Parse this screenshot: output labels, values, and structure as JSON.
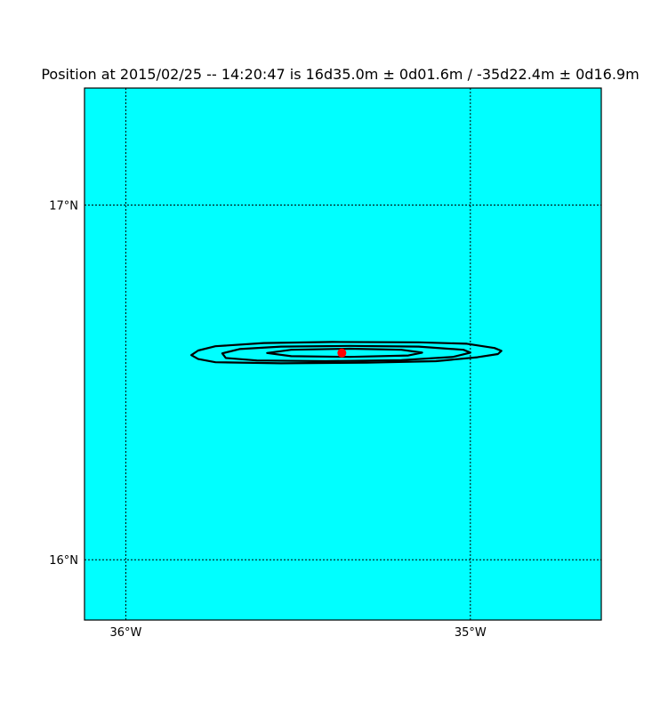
{
  "title": "Position at 2015/02/25 -- 14:20:47 is 16d35.0m ± 0d01.6m  /  -35d22.4m ± 0d16.9m",
  "map": {
    "ocean_color": "#00ffff",
    "contour_color": "#000000",
    "marker_color": "#ff0000",
    "lon_range": [
      -36.12,
      -34.62
    ],
    "lat_range": [
      15.83,
      17.33
    ],
    "lon_ticks": [
      {
        "value": -36,
        "label": "36°W"
      },
      {
        "value": -35,
        "label": "35°W"
      }
    ],
    "lat_ticks": [
      {
        "value": 17,
        "label": "17°N"
      },
      {
        "value": 16,
        "label": "16°N"
      }
    ],
    "estimated_position": {
      "lat": 16.583,
      "lon": -35.373
    },
    "contours": [
      {
        "name": "outer",
        "points": [
          [
            -35.81,
            16.577
          ],
          [
            -35.79,
            16.59
          ],
          [
            -35.74,
            16.602
          ],
          [
            -35.6,
            16.611
          ],
          [
            -35.4,
            16.614
          ],
          [
            -35.15,
            16.613
          ],
          [
            -35.01,
            16.609
          ],
          [
            -34.93,
            16.597
          ],
          [
            -34.91,
            16.589
          ],
          [
            -34.92,
            16.58
          ],
          [
            -34.98,
            16.571
          ],
          [
            -35.1,
            16.56
          ],
          [
            -35.3,
            16.556
          ],
          [
            -35.55,
            16.554
          ],
          [
            -35.74,
            16.557
          ],
          [
            -35.79,
            16.566
          ],
          [
            -35.81,
            16.577
          ]
        ]
      },
      {
        "name": "middle",
        "points": [
          [
            -35.72,
            16.582
          ],
          [
            -35.67,
            16.594
          ],
          [
            -35.55,
            16.601
          ],
          [
            -35.35,
            16.603
          ],
          [
            -35.15,
            16.601
          ],
          [
            -35.02,
            16.592
          ],
          [
            -35.0,
            16.584
          ],
          [
            -35.05,
            16.572
          ],
          [
            -35.2,
            16.563
          ],
          [
            -35.42,
            16.56
          ],
          [
            -35.62,
            16.562
          ],
          [
            -35.71,
            16.569
          ],
          [
            -35.72,
            16.582
          ]
        ]
      },
      {
        "name": "inner",
        "points": [
          [
            -35.59,
            16.583
          ],
          [
            -35.52,
            16.592
          ],
          [
            -35.35,
            16.595
          ],
          [
            -35.2,
            16.592
          ],
          [
            -35.14,
            16.584
          ],
          [
            -35.18,
            16.576
          ],
          [
            -35.35,
            16.572
          ],
          [
            -35.52,
            16.574
          ],
          [
            -35.59,
            16.583
          ]
        ]
      }
    ]
  }
}
